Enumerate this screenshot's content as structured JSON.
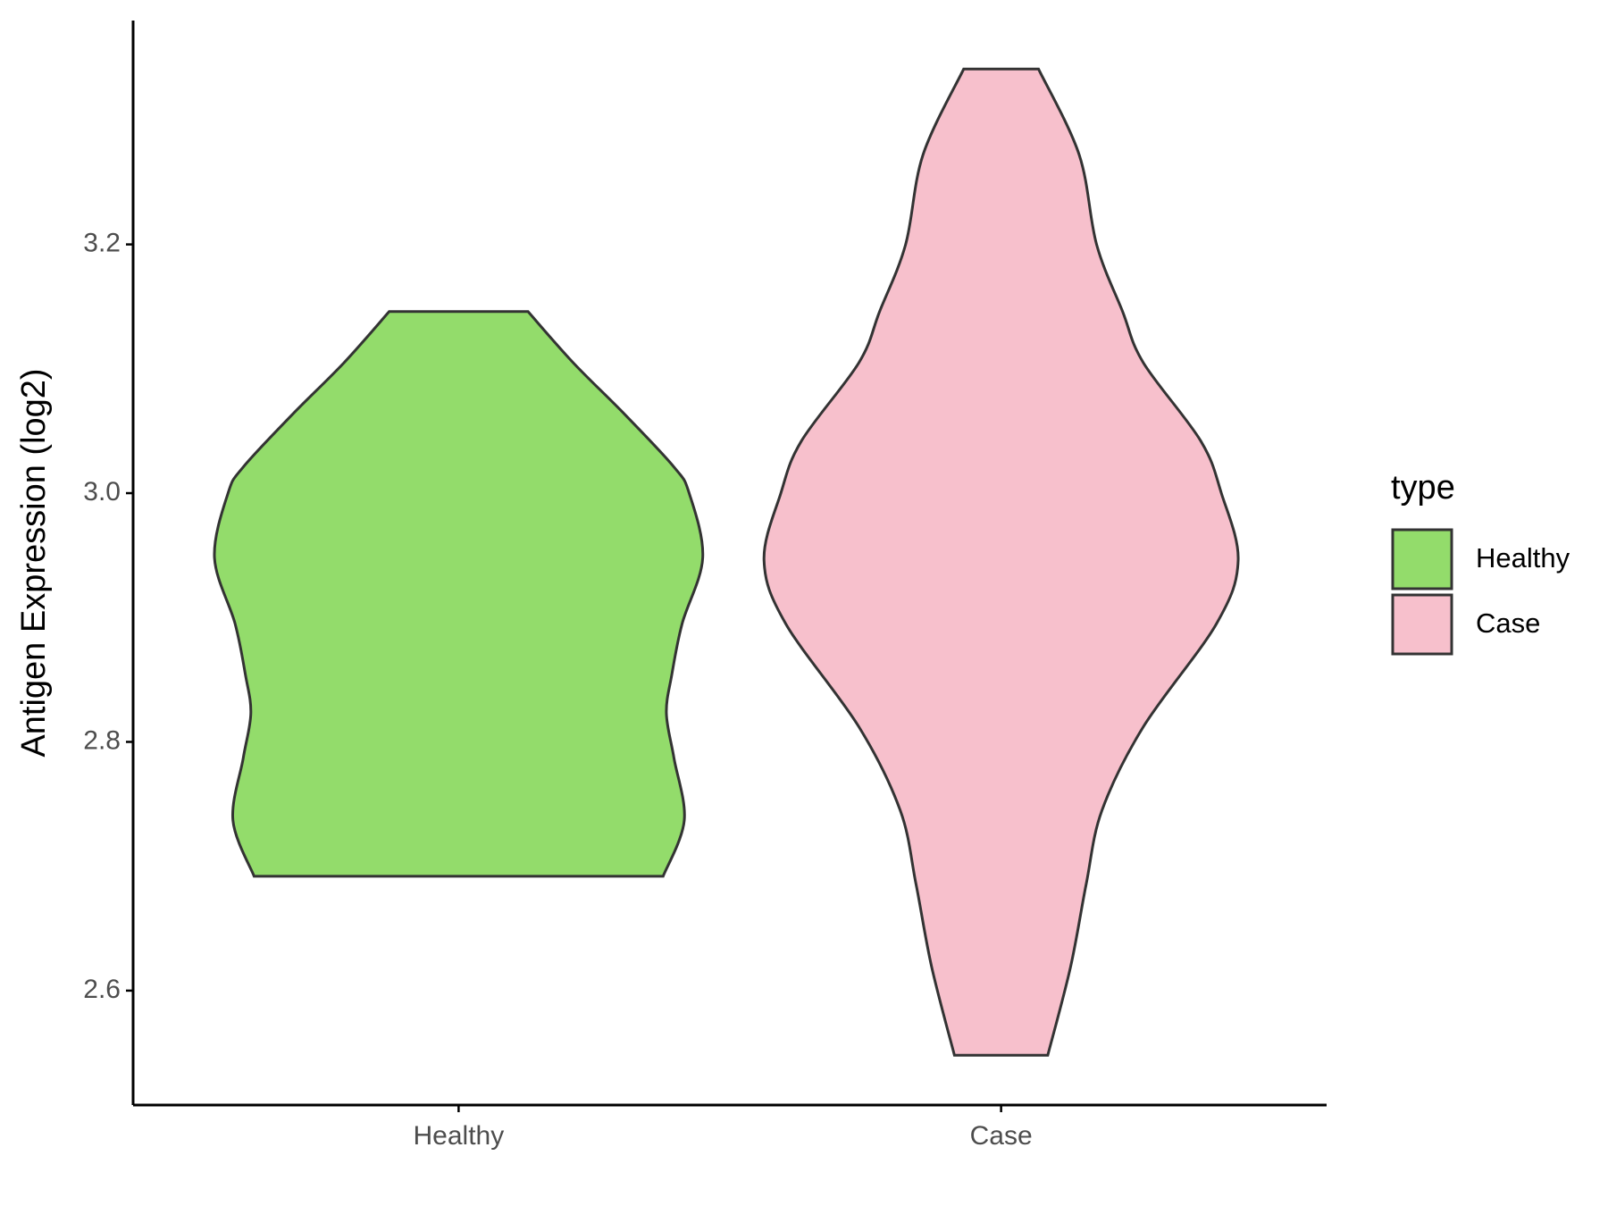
{
  "chart_data": {
    "type": "violin",
    "y_label": "Antigen Expression (log2)",
    "categories": [
      "Healthy",
      "Case"
    ],
    "legend_title": "type",
    "ylim": [
      2.508,
      3.38
    ],
    "yticks": [
      {
        "value": 2.6,
        "label": "2.6"
      },
      {
        "value": 2.8,
        "label": "2.8"
      },
      {
        "value": 3.0,
        "label": "3.0"
      },
      {
        "value": 3.2,
        "label": "3.2"
      }
    ],
    "series": [
      {
        "name": "Healthy",
        "color": "#93dc6b",
        "y": [
          3.146,
          3.105,
          3.063,
          3.021,
          3.0,
          2.948,
          2.895,
          2.854,
          2.823,
          2.787,
          2.737,
          2.692
        ],
        "density": [
          0.128,
          0.211,
          0.307,
          0.397,
          0.425,
          0.45,
          0.412,
          0.393,
          0.383,
          0.397,
          0.416,
          0.377
        ]
      },
      {
        "name": "Case",
        "color": "#f7c0cc",
        "y": [
          3.341,
          3.272,
          3.2,
          3.146,
          3.105,
          3.042,
          3.0,
          2.946,
          2.895,
          2.812,
          2.745,
          2.686,
          2.619,
          2.548
        ],
        "density": [
          0.069,
          0.144,
          0.176,
          0.224,
          0.262,
          0.368,
          0.406,
          0.437,
          0.397,
          0.262,
          0.186,
          0.157,
          0.128,
          0.086
        ]
      }
    ]
  }
}
